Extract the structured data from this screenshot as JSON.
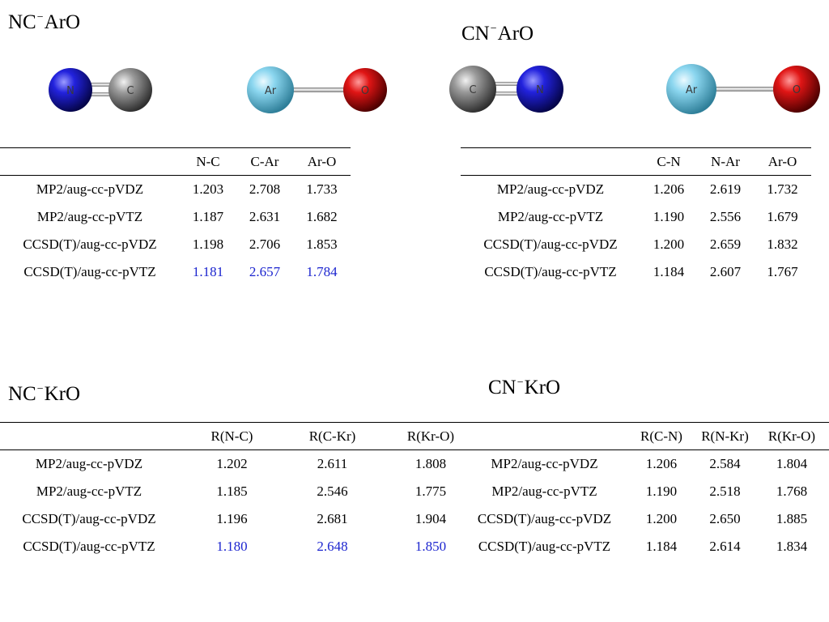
{
  "panels": [
    {
      "title_left": "NC",
      "title_sup": "−",
      "title_right": "ArO",
      "atoms": [
        "N",
        "C",
        "Ar",
        "O"
      ],
      "columns": [
        "",
        "N-C",
        "C-Ar",
        "Ar-O"
      ],
      "rows": [
        [
          "MP2/aug-cc-pVDZ",
          "1.203",
          "2.708",
          "1.733"
        ],
        [
          "MP2/aug-cc-pVTZ",
          "1.187",
          "2.631",
          "1.682"
        ],
        [
          "CCSD(T)/aug-cc-pVDZ",
          "1.198",
          "2.706",
          "1.853"
        ],
        [
          "CCSD(T)/aug-cc-pVTZ",
          "1.181",
          "2.657",
          "1.784"
        ]
      ]
    },
    {
      "title_left": "CN",
      "title_sup": "−",
      "title_right": "ArO",
      "atoms": [
        "C",
        "N",
        "Ar",
        "O"
      ],
      "columns": [
        "",
        "C-N",
        "N-Ar",
        "Ar-O"
      ],
      "rows": [
        [
          "MP2/aug-cc-pVDZ",
          "1.206",
          "2.619",
          "1.732"
        ],
        [
          "MP2/aug-cc-pVTZ",
          "1.190",
          "2.556",
          "1.679"
        ],
        [
          "CCSD(T)/aug-cc-pVDZ",
          "1.200",
          "2.659",
          "1.832"
        ],
        [
          "CCSD(T)/aug-cc-pVTZ",
          "1.184",
          "2.607",
          "1.767"
        ]
      ]
    },
    {
      "title_left": "NC",
      "title_sup": "−",
      "title_right": "KrO",
      "columns": [
        "",
        "R(N-C)",
        "R(C-Kr)",
        "R(Kr-O)"
      ],
      "rows": [
        [
          "MP2/aug-cc-pVDZ",
          "1.202",
          "2.611",
          "1.808"
        ],
        [
          "MP2/aug-cc-pVTZ",
          "1.185",
          "2.546",
          "1.775"
        ],
        [
          "CCSD(T)/aug-cc-pVDZ",
          "1.196",
          "2.681",
          "1.904"
        ],
        [
          "CCSD(T)/aug-cc-pVTZ",
          "1.180",
          "2.648",
          "1.850"
        ]
      ]
    },
    {
      "title_left": "CN",
      "title_sup": "−",
      "title_right": "KrO",
      "columns": [
        "",
        "R(C-N)",
        "R(N-Kr)",
        "R(Kr-O)"
      ],
      "rows": [
        [
          "MP2/aug-cc-pVDZ",
          "1.206",
          "2.584",
          "1.804"
        ],
        [
          "MP2/aug-cc-pVTZ",
          "1.190",
          "2.518",
          "1.768"
        ],
        [
          "CCSD(T)/aug-cc-pVDZ",
          "1.200",
          "2.650",
          "1.885"
        ],
        [
          "CCSD(T)/aug-cc-pVTZ",
          "1.184",
          "2.614",
          "1.834"
        ]
      ]
    }
  ],
  "colors": {
    "highlight": "#1c25cf",
    "N": "#1414c8",
    "C": "#8a8a8a",
    "Ar": "#7fd2ec",
    "O": "#d01010"
  }
}
